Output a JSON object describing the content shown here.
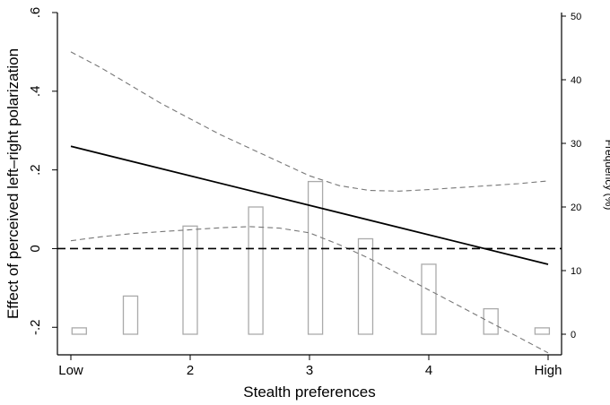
{
  "chart_data": {
    "type": "line",
    "xlabel": "Stealth preferences",
    "ylabel": "Effect of perceived left–right polarization",
    "y2label": "Frequency (%)",
    "xlim": [
      1,
      5
    ],
    "ylim": [
      -0.27,
      0.6
    ],
    "y2lim": [
      -1,
      51
    ],
    "x_ticks": [
      {
        "value": 1,
        "label": "Low"
      },
      {
        "value": 2,
        "label": "2"
      },
      {
        "value": 3,
        "label": "3"
      },
      {
        "value": 4,
        "label": "4"
      },
      {
        "value": 5,
        "label": "High"
      }
    ],
    "y_ticks": [
      {
        "value": -0.2,
        "label": "-.2"
      },
      {
        "value": 0,
        "label": "0"
      },
      {
        "value": 0.2,
        "label": ".2"
      },
      {
        "value": 0.4,
        "label": ".4"
      },
      {
        "value": 0.6,
        "label": ".6"
      }
    ],
    "y2_ticks": [
      {
        "value": 0,
        "label": "0"
      },
      {
        "value": 10,
        "label": "10"
      },
      {
        "value": 20,
        "label": "20"
      },
      {
        "value": 30,
        "label": "30"
      },
      {
        "value": 40,
        "label": "40"
      },
      {
        "value": 50,
        "label": "50"
      }
    ],
    "effect_line": {
      "x": [
        1,
        5
      ],
      "y": [
        0.26,
        -0.04
      ]
    },
    "upper_ci": {
      "x": [
        1,
        1.25,
        1.5,
        1.75,
        2,
        2.25,
        2.5,
        2.75,
        3,
        3.25,
        3.5,
        3.75,
        4,
        4.25,
        4.5,
        4.75,
        5
      ],
      "y": [
        0.5,
        0.46,
        0.415,
        0.37,
        0.33,
        0.29,
        0.255,
        0.22,
        0.185,
        0.16,
        0.148,
        0.146,
        0.15,
        0.155,
        0.16,
        0.165,
        0.172
      ]
    },
    "lower_ci": {
      "x": [
        1,
        1.25,
        1.5,
        1.75,
        2,
        2.25,
        2.5,
        2.75,
        3,
        3.25,
        3.5,
        3.75,
        4,
        4.25,
        4.5,
        4.75,
        5
      ],
      "y": [
        0.02,
        0.03,
        0.038,
        0.043,
        0.048,
        0.053,
        0.056,
        0.052,
        0.04,
        0.01,
        -0.025,
        -0.065,
        -0.105,
        -0.145,
        -0.185,
        -0.225,
        -0.265
      ]
    },
    "zero_line": 0,
    "histogram": {
      "x": [
        1.07,
        1.5,
        2.0,
        2.55,
        3.05,
        3.47,
        4.0,
        4.52,
        4.95
      ],
      "frequency": [
        1,
        6,
        17,
        20,
        24,
        15,
        11,
        4,
        1
      ]
    },
    "grid": false,
    "colors": {
      "effect_line": "#000000",
      "ci_lines": "#777777",
      "zero_line": "#000000",
      "bars": "#aaaaaa",
      "axes": "#000000"
    }
  }
}
